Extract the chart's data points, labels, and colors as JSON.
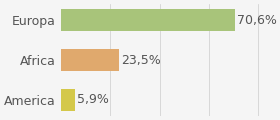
{
  "categories": [
    "America",
    "Africa",
    "Europa"
  ],
  "values": [
    5.9,
    23.5,
    70.6
  ],
  "labels": [
    "5,9%",
    "23,5%",
    "70,6%"
  ],
  "bar_colors": [
    "#d4c84a",
    "#e0a96d",
    "#a8c47a"
  ],
  "background_color": "#f5f5f5",
  "xlim": [
    0,
    85
  ],
  "label_fontsize": 9,
  "tick_fontsize": 9
}
